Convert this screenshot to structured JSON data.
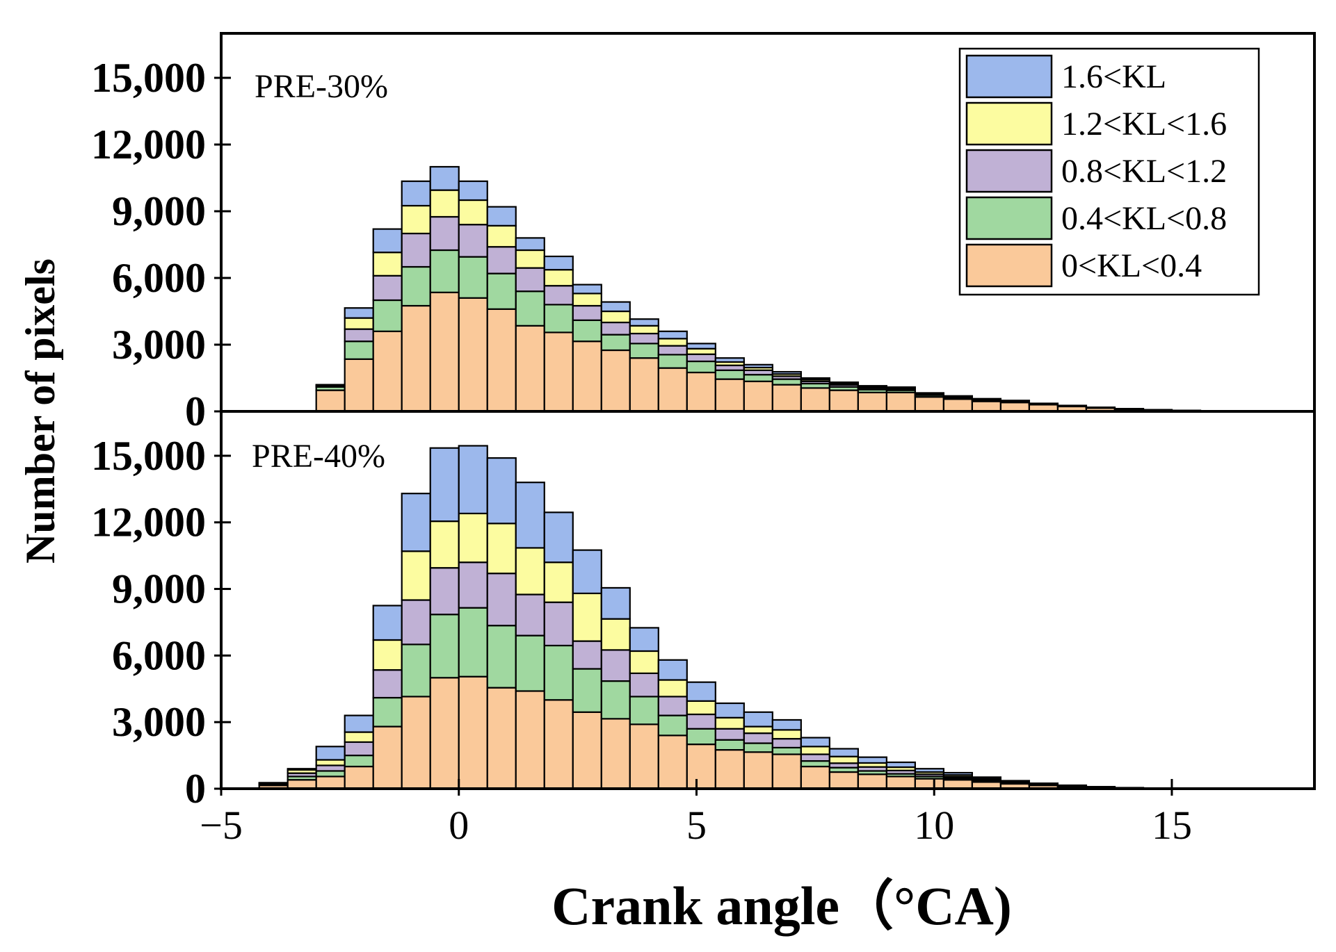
{
  "chart_data": {
    "type": "bar",
    "stacked": true,
    "xlabel": "Crank angle（°CA)",
    "ylabel": "Number of pixels",
    "xlim": [
      -5,
      18
    ],
    "x_ticks": [
      -5,
      0,
      5,
      10,
      15
    ],
    "x_tick_labels": [
      "−5",
      "0",
      "5",
      "10",
      "15"
    ],
    "ylim": [
      0,
      17000
    ],
    "y_ticks": [
      0,
      3000,
      6000,
      9000,
      12000,
      15000
    ],
    "y_tick_labels": [
      "0",
      "3,000",
      "6,000",
      "9,000",
      "12,000",
      "15,000"
    ],
    "bin_width": 0.6,
    "legend": [
      {
        "label": "1.6<KL",
        "color": "#9cb8ec"
      },
      {
        "label": "1.2<KL<1.6",
        "color": "#fcfca0"
      },
      {
        "label": "0.8<KL<1.2",
        "color": "#c0b1d5"
      },
      {
        "label": "0.4<KL<0.8",
        "color": "#a0d8a0"
      },
      {
        "label": "0<KL<0.4",
        "color": "#fac99a"
      }
    ],
    "panels": [
      {
        "label": "PRE-30%",
        "x": [
          -2.7,
          -2.1,
          -1.5,
          -0.9,
          -0.3,
          0.3,
          0.9,
          1.5,
          2.1,
          2.7,
          3.3,
          3.9,
          4.5,
          5.1,
          5.7,
          6.3,
          6.9,
          7.5,
          8.1,
          8.7,
          9.3,
          9.9,
          10.5,
          11.1,
          11.7,
          12.3,
          12.9,
          13.5,
          14.1,
          14.7,
          15.3,
          15.9
        ],
        "series": [
          {
            "name": "0<KL<0.4",
            "values": [
              950,
              2350,
              3600,
              4750,
              5350,
              5100,
              4600,
              3850,
              3550,
              3150,
              2750,
              2400,
              1950,
              1750,
              1450,
              1350,
              1200,
              1050,
              950,
              850,
              850,
              650,
              550,
              450,
              400,
              300,
              220,
              150,
              100,
              60,
              30,
              15
            ]
          },
          {
            "name": "0.4<KL<0.8",
            "values": [
              150,
              800,
              1400,
              1750,
              1900,
              1850,
              1600,
              1550,
              1250,
              950,
              700,
              650,
              600,
              500,
              400,
              300,
              250,
              200,
              150,
              130,
              100,
              80,
              60,
              50,
              40,
              25,
              20,
              15,
              10,
              5,
              5,
              3
            ]
          },
          {
            "name": "0.8<KL<1.2",
            "values": [
              50,
              550,
              1100,
              1500,
              1500,
              1450,
              1200,
              1050,
              850,
              650,
              550,
              450,
              400,
              320,
              220,
              200,
              130,
              100,
              90,
              70,
              60,
              40,
              35,
              30,
              20,
              15,
              10,
              8,
              5,
              3,
              2,
              1
            ]
          },
          {
            "name": "1.2<KL<1.6",
            "values": [
              30,
              500,
              1050,
              1250,
              1200,
              1100,
              950,
              800,
              720,
              550,
              500,
              350,
              320,
              250,
              150,
              120,
              100,
              80,
              60,
              50,
              40,
              30,
              25,
              20,
              15,
              10,
              8,
              5,
              3,
              2,
              1,
              1
            ]
          },
          {
            "name": "1.6<KL",
            "values": [
              20,
              450,
              1050,
              1100,
              1050,
              850,
              850,
              550,
              600,
              400,
              420,
              300,
              330,
              230,
              180,
              130,
              100,
              70,
              60,
              50,
              40,
              30,
              25,
              20,
              15,
              10,
              7,
              5,
              3,
              2,
              1,
              1
            ]
          }
        ]
      },
      {
        "label": "PRE-40%",
        "x": [
          -3.9,
          -3.3,
          -2.7,
          -2.1,
          -1.5,
          -0.9,
          -0.3,
          0.3,
          0.9,
          1.5,
          2.1,
          2.7,
          3.3,
          3.9,
          4.5,
          5.1,
          5.7,
          6.3,
          6.9,
          7.5,
          8.1,
          8.7,
          9.3,
          9.9,
          10.5,
          11.1,
          11.7,
          12.3,
          12.9,
          13.5,
          14.1,
          14.7
        ],
        "series": [
          {
            "name": "0<KL<0.4",
            "values": [
              150,
              400,
              550,
              1000,
              2800,
              4150,
              5000,
              5050,
              4550,
              4400,
              4000,
              3450,
              3150,
              2900,
              2400,
              2000,
              1750,
              1650,
              1550,
              1000,
              750,
              650,
              550,
              450,
              400,
              300,
              220,
              150,
              100,
              60,
              30,
              15
            ]
          },
          {
            "name": "0.4<KL<0.8",
            "values": [
              50,
              150,
              250,
              500,
              1300,
              2350,
              2850,
              3100,
              2800,
              2500,
              2450,
              1950,
              1700,
              1250,
              900,
              700,
              450,
              400,
              300,
              250,
              200,
              150,
              120,
              100,
              70,
              50,
              35,
              25,
              15,
              10,
              5,
              2
            ]
          },
          {
            "name": "0.8<KL<1.2",
            "values": [
              30,
              150,
              250,
              600,
              1250,
              2000,
              2100,
              2050,
              2350,
              1850,
              1950,
              1250,
              1400,
              1050,
              850,
              650,
              500,
              450,
              400,
              300,
              200,
              180,
              150,
              100,
              70,
              50,
              30,
              20,
              10,
              5,
              3,
              1
            ]
          },
          {
            "name": "1.2<KL<1.6",
            "values": [
              20,
              150,
              250,
              450,
              1350,
              2200,
              2100,
              2200,
              2250,
              2100,
              1800,
              2150,
              1400,
              1000,
              750,
              600,
              500,
              300,
              400,
              350,
              300,
              180,
              150,
              100,
              80,
              50,
              30,
              20,
              10,
              5,
              3,
              1
            ]
          },
          {
            "name": "1.6<KL",
            "values": [
              20,
              50,
              600,
              750,
              1550,
              2600,
              3300,
              3050,
              2950,
              2950,
              2250,
              1950,
              1400,
              1050,
              900,
              850,
              650,
              650,
              450,
              400,
              350,
              260,
              220,
              150,
              100,
              70,
              45,
              30,
              20,
              10,
              5,
              2
            ]
          }
        ]
      }
    ]
  }
}
